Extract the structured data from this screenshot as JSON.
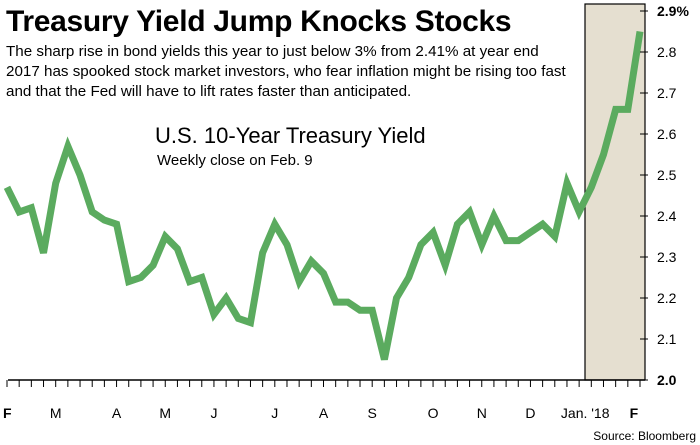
{
  "headline": "Treasury Yield Jump Knocks Stocks",
  "dek": [
    "The sharp rise in bond yields this year to just below 3% from 2.41% at year end",
    "2017 has spooked stock market investors, who fear inflation might be rising too fast",
    "and that the Fed will have to lift rates faster than anticipated."
  ],
  "source": "Source: Bloomberg",
  "colors": {
    "line": "#5bab5f",
    "highlight": "#e5dfd0",
    "axis": "#000000"
  },
  "chart_data": {
    "type": "line",
    "title": "U.S. 10-Year Treasury Yield",
    "subtitle": "Weekly close on Feb. 9",
    "xlabel": "",
    "ylabel": "",
    "ylim": [
      2.0,
      2.9
    ],
    "y_ticks": [
      {
        "value": 2.9,
        "label": "2.9%",
        "bold": true
      },
      {
        "value": 2.8,
        "label": "2.8",
        "bold": false
      },
      {
        "value": 2.7,
        "label": "2.7",
        "bold": false
      },
      {
        "value": 2.6,
        "label": "2.6",
        "bold": false
      },
      {
        "value": 2.5,
        "label": "2.5",
        "bold": false
      },
      {
        "value": 2.4,
        "label": "2.4",
        "bold": false
      },
      {
        "value": 2.3,
        "label": "2.3",
        "bold": false
      },
      {
        "value": 2.2,
        "label": "2.2",
        "bold": false
      },
      {
        "value": 2.1,
        "label": "2.1",
        "bold": false
      },
      {
        "value": 2.0,
        "label": "2.0",
        "bold": true
      }
    ],
    "x_labels": [
      {
        "week": 0,
        "label": "F",
        "bold": true
      },
      {
        "week": 4,
        "label": "M",
        "bold": false
      },
      {
        "week": 9,
        "label": "A",
        "bold": false
      },
      {
        "week": 13,
        "label": "M",
        "bold": false
      },
      {
        "week": 17,
        "label": "J",
        "bold": false
      },
      {
        "week": 22,
        "label": "J",
        "bold": false
      },
      {
        "week": 26,
        "label": "A",
        "bold": false
      },
      {
        "week": 30,
        "label": "S",
        "bold": false
      },
      {
        "week": 35,
        "label": "O",
        "bold": false
      },
      {
        "week": 39,
        "label": "N",
        "bold": false
      },
      {
        "week": 43,
        "label": "D",
        "bold": false
      },
      {
        "week": 47.5,
        "label": "Jan. '18",
        "bold": false
      },
      {
        "week": 51.5,
        "label": "F",
        "bold": true
      }
    ],
    "highlight": {
      "from_week": 47.5,
      "to_week": 52.3
    },
    "series": [
      {
        "values": [
          2.47,
          2.41,
          2.42,
          2.31,
          2.48,
          2.57,
          2.5,
          2.41,
          2.39,
          2.38,
          2.24,
          2.25,
          2.28,
          2.35,
          2.32,
          2.24,
          2.25,
          2.16,
          2.2,
          2.15,
          2.14,
          2.31,
          2.38,
          2.33,
          2.24,
          2.29,
          2.26,
          2.19,
          2.19,
          2.17,
          2.17,
          2.05,
          2.2,
          2.25,
          2.33,
          2.36,
          2.28,
          2.38,
          2.41,
          2.33,
          2.4,
          2.34,
          2.34,
          2.36,
          2.38,
          2.35,
          2.48,
          2.41,
          2.47,
          2.55,
          2.66,
          2.66,
          2.85
        ]
      }
    ]
  }
}
